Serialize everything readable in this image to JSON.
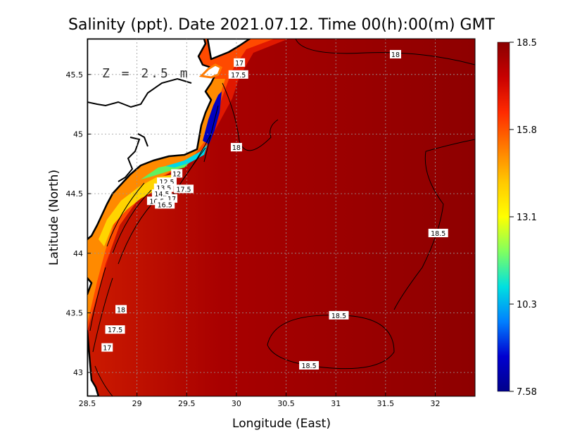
{
  "title": "Salinity (ppt). Date 2021.07.12. Time 00(h):00(m) GMT",
  "depth_label": "Z = 2.5 m",
  "x_axis": {
    "label": "Longitude (East)",
    "range": [
      28.5,
      32.4
    ],
    "ticks": [
      "28.5",
      "29",
      "29.5",
      "30",
      "30.5",
      "31",
      "31.5",
      "32"
    ]
  },
  "y_axis": {
    "label": "Latitude (North)",
    "range": [
      42.8,
      45.8
    ],
    "ticks": [
      "43",
      "43.5",
      "44",
      "44.5",
      "45",
      "45.5"
    ]
  },
  "colorbar": {
    "min": 7.58,
    "max": 18.5,
    "tick_labels": [
      "18.5",
      "15.8",
      "13.1",
      "10.3",
      "7.58"
    ],
    "colors": [
      "#8a0000",
      "#c80000",
      "#ff2a00",
      "#ff7a00",
      "#ffc800",
      "#ffff00",
      "#80ff60",
      "#00e0e0",
      "#0080ff",
      "#0000d0",
      "#00008a"
    ]
  },
  "contour_labels": [
    {
      "text": "18",
      "lon": 31.6,
      "lat": 45.67
    },
    {
      "text": "17",
      "lon": 30.03,
      "lat": 45.6
    },
    {
      "text": "17.5",
      "lon": 30.02,
      "lat": 45.5
    },
    {
      "text": "18",
      "lon": 30.0,
      "lat": 44.89
    },
    {
      "text": "12",
      "lon": 29.4,
      "lat": 44.67
    },
    {
      "text": "12.5",
      "lon": 29.3,
      "lat": 44.6
    },
    {
      "text": "13.5",
      "lon": 29.27,
      "lat": 44.55
    },
    {
      "text": "14.5",
      "lon": 29.25,
      "lat": 44.5
    },
    {
      "text": "17.5",
      "lon": 29.47,
      "lat": 44.54
    },
    {
      "text": "16.5",
      "lon": 29.2,
      "lat": 44.44
    },
    {
      "text": "17",
      "lon": 29.35,
      "lat": 44.46
    },
    {
      "text": "16.5",
      "lon": 29.28,
      "lat": 44.41
    },
    {
      "text": "18.5",
      "lon": 32.03,
      "lat": 44.17
    },
    {
      "text": "18",
      "lon": 28.84,
      "lat": 43.53
    },
    {
      "text": "17.5",
      "lon": 28.78,
      "lat": 43.36
    },
    {
      "text": "17",
      "lon": 28.7,
      "lat": 43.21
    },
    {
      "text": "18.5",
      "lon": 31.03,
      "lat": 43.48
    },
    {
      "text": "18.5",
      "lon": 30.73,
      "lat": 43.06
    }
  ]
}
